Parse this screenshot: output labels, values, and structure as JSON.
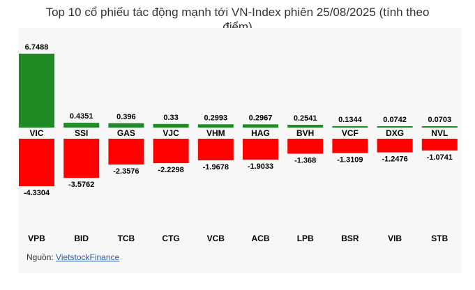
{
  "chart_data": {
    "type": "bar",
    "title": "Top 10 cổ phiếu tác động mạnh tới VN-Index phiên 25/08/2025 (tính theo điểm)",
    "title_lines": [
      "Top 10 cổ phiếu tác động mạnh tới VN-Index phiên 25/08/2025 (tính theo",
      "điểm)"
    ],
    "series": [
      {
        "color": "#1f8b24",
        "categories": [
          "VIC",
          "SSI",
          "GAS",
          "VJC",
          "VHM",
          "HAG",
          "BVH",
          "VCF",
          "DXG",
          "NVL"
        ],
        "values": [
          6.7488,
          0.4351,
          0.396,
          0.33,
          0.2993,
          0.2967,
          0.2541,
          0.1344,
          0.0742,
          0.0703
        ],
        "labels": [
          "6.7488",
          "0.4351",
          "0.396",
          "0.33",
          "0.2993",
          "0.2967",
          "0.2541",
          "0.1344",
          "0.0742",
          "0.0703"
        ]
      },
      {
        "color": "#ff0000",
        "categories": [
          "VPB",
          "BID",
          "TCB",
          "CTG",
          "VCB",
          "ACB",
          "LPB",
          "BSR",
          "VIB",
          "STB"
        ],
        "values": [
          -4.3304,
          -3.5762,
          -2.3576,
          -2.2298,
          -1.9678,
          -1.9033,
          -1.368,
          -1.3109,
          -1.2476,
          -1.0741
        ],
        "labels": [
          "-4.3304",
          "-3.5762",
          "-2.3576",
          "-2.2298",
          "-1.9678",
          "-1.9033",
          "-1.368",
          "-1.3109",
          "-1.2476",
          "-1.0741"
        ]
      }
    ]
  },
  "source": {
    "prefix": "Nguồn: ",
    "link": "VietstockFinance"
  }
}
